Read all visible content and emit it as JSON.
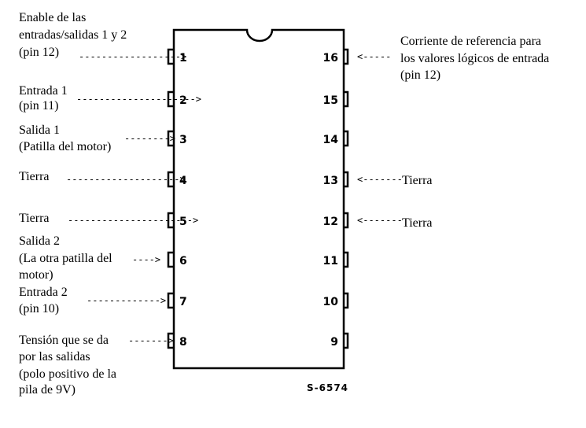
{
  "chip": {
    "code": "S-6574",
    "left_pins": [
      {
        "num": "1",
        "lines": [
          "Enable de las",
          "entradas/salidas 1 y 2",
          "(pin 12)"
        ],
        "arrow": "------------------>"
      },
      {
        "num": "2",
        "lines": [
          "Entrada 1",
          "(pin 11)"
        ],
        "arrow": "--------------------->"
      },
      {
        "num": "3",
        "lines": [
          "Salida 1",
          "(Patilla del motor)"
        ],
        "arrow": "-------->"
      },
      {
        "num": "4",
        "lines": [
          "Tierra"
        ],
        "arrow": "-------------------->"
      },
      {
        "num": "5",
        "lines": [
          "Tierra"
        ],
        "arrow": "---------------------->"
      },
      {
        "num": "6",
        "lines": [
          "Salida 2",
          "(La otra patilla del",
          "motor)"
        ],
        "arrow": "---->"
      },
      {
        "num": "7",
        "lines": [
          "Entrada 2",
          "(pin 10)"
        ],
        "arrow": "------------->"
      },
      {
        "num": "8",
        "lines": [
          "Tensión que se da",
          "por las salidas",
          "(polo positivo de la",
          "pila de 9V)"
        ],
        "arrow": "------->"
      }
    ],
    "right_pins": [
      {
        "num": "16",
        "lines": [
          "Corriente de referencia para",
          "los valores lógicos de entrada",
          "(pin 12)"
        ],
        "arrow": "<-----"
      },
      {
        "num": "15",
        "lines": [],
        "arrow": ""
      },
      {
        "num": "14",
        "lines": [],
        "arrow": ""
      },
      {
        "num": "13",
        "lines": [
          "Tierra"
        ],
        "arrow": "<-------"
      },
      {
        "num": "12",
        "lines": [
          "Tierra"
        ],
        "arrow": "<-------"
      },
      {
        "num": "11",
        "lines": [],
        "arrow": ""
      },
      {
        "num": "10",
        "lines": [],
        "arrow": ""
      },
      {
        "num": "9",
        "lines": [],
        "arrow": ""
      }
    ]
  }
}
